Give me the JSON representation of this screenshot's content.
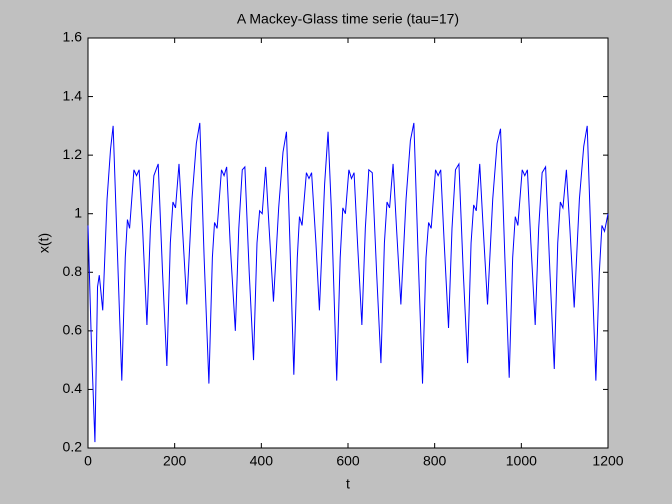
{
  "chart_data": {
    "type": "line",
    "title": "A Mackey-Glass time serie (tau=17)",
    "xlabel": "t",
    "ylabel": "x(t)",
    "color": "#0000ff",
    "xlim": [
      0,
      1200
    ],
    "ylim": [
      0.2,
      1.6
    ],
    "xticks": [
      0,
      200,
      400,
      600,
      800,
      1000,
      1200
    ],
    "yticks": [
      0.2,
      0.4,
      0.6,
      0.8,
      1,
      1.2,
      1.4,
      1.6
    ],
    "grid": false,
    "x": [
      0,
      8,
      16,
      22,
      26,
      34,
      44,
      52,
      58,
      66,
      78,
      86,
      91,
      96,
      106,
      112,
      118,
      126,
      136,
      144,
      152,
      162,
      172,
      182,
      190,
      196,
      202,
      210,
      218,
      228,
      240,
      250,
      258,
      268,
      279,
      287,
      292,
      298,
      308,
      314,
      320,
      328,
      340,
      348,
      356,
      362,
      372,
      382,
      390,
      396,
      402,
      410,
      418,
      428,
      440,
      450,
      458,
      466,
      475,
      483,
      488,
      494,
      504,
      510,
      516,
      526,
      534,
      546,
      554,
      562,
      574,
      582,
      588,
      594,
      602,
      608,
      614,
      622,
      632,
      640,
      648,
      656,
      666,
      676,
      684,
      690,
      696,
      704,
      712,
      722,
      734,
      744,
      752,
      762,
      772,
      780,
      786,
      792,
      802,
      808,
      814,
      822,
      832,
      840,
      848,
      856,
      866,
      876,
      884,
      890,
      896,
      904,
      912,
      922,
      934,
      944,
      952,
      962,
      972,
      980,
      986,
      992,
      1002,
      1008,
      1014,
      1022,
      1032,
      1040,
      1048,
      1056,
      1066,
      1076,
      1084,
      1090,
      1096,
      1104,
      1112,
      1122,
      1134,
      1144,
      1152,
      1162,
      1172,
      1180,
      1186,
      1192,
      1200
    ],
    "values": [
      0.96,
      0.55,
      0.22,
      0.75,
      0.79,
      0.67,
      1.05,
      1.22,
      1.3,
      0.95,
      0.43,
      0.85,
      0.98,
      0.95,
      1.15,
      1.13,
      1.15,
      0.95,
      0.62,
      0.95,
      1.13,
      1.17,
      0.8,
      0.48,
      0.9,
      1.04,
      1.02,
      1.17,
      0.95,
      0.69,
      1.05,
      1.24,
      1.31,
      0.85,
      0.42,
      0.85,
      0.97,
      0.95,
      1.15,
      1.13,
      1.16,
      0.9,
      0.6,
      0.95,
      1.15,
      1.16,
      0.8,
      0.5,
      0.9,
      1.01,
      1.0,
      1.16,
      0.95,
      0.7,
      1.02,
      1.21,
      1.28,
      0.9,
      0.45,
      0.85,
      0.99,
      0.96,
      1.14,
      1.12,
      1.14,
      0.9,
      0.67,
      1.1,
      1.28,
      1.0,
      0.43,
      0.85,
      1.02,
      1.0,
      1.15,
      1.12,
      1.14,
      0.9,
      0.62,
      0.95,
      1.15,
      1.14,
      0.8,
      0.49,
      0.9,
      1.04,
      1.02,
      1.17,
      0.95,
      0.69,
      1.05,
      1.25,
      1.31,
      0.85,
      0.42,
      0.85,
      0.97,
      0.95,
      1.15,
      1.13,
      1.15,
      0.9,
      0.61,
      0.95,
      1.15,
      1.17,
      0.8,
      0.49,
      0.9,
      1.03,
      1.01,
      1.17,
      0.95,
      0.69,
      1.05,
      1.24,
      1.29,
      0.85,
      0.44,
      0.85,
      0.99,
      0.96,
      1.15,
      1.13,
      1.15,
      0.9,
      0.62,
      0.95,
      1.14,
      1.16,
      0.8,
      0.47,
      0.9,
      1.04,
      1.02,
      1.15,
      0.95,
      0.68,
      1.05,
      1.23,
      1.3,
      0.85,
      0.43,
      0.8,
      0.96,
      0.94,
      1.0
    ]
  }
}
